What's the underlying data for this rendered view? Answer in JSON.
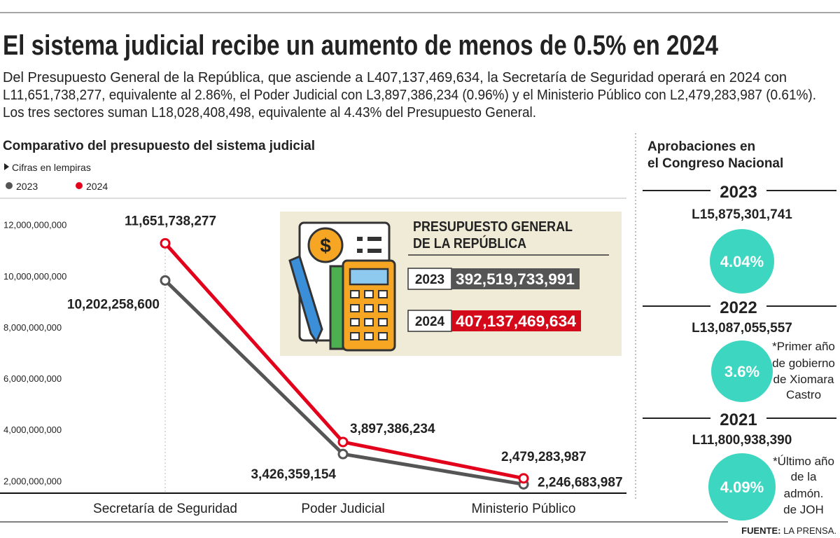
{
  "title": "El sistema judicial recibe un aumento de menos de 0.5% en 2024",
  "intro": [
    "Del Presupuesto General de la República, que asciende a L407,137,469,634, la Secretaría de Seguridad operará en 2024 con",
    "L11,651,738,277, equivalente al 2.86%, el Poder Judicial con L3,897,386,234 (0.96%) y el Ministerio Público con L2,479,283,987 (0.61%).",
    "Los tres sectores suman L18,028,408,498, equivalente al 4.43% del Presupuesto General."
  ],
  "chart_data": {
    "type": "line",
    "title": "Comparativo del presupuesto del sistema judicial",
    "subtitle": "Cifras en lempiras",
    "categories": [
      "Secretaría de Seguridad",
      "Poder Judicial",
      "Ministerio Público"
    ],
    "series": [
      {
        "name": "2023",
        "color": "#555555",
        "values": [
          10202258600,
          3426359154,
          2246683987
        ],
        "value_labels": [
          "10,202,258,600",
          "3,426,359,154",
          "2,246,683,987"
        ]
      },
      {
        "name": "2024",
        "color": "#e3001b",
        "values": [
          11651738277,
          3897386234,
          2479283987
        ],
        "value_labels": [
          "11,651,738,277",
          "3,897,386,234",
          "2,479,283,987"
        ]
      }
    ],
    "ylim": [
      1900000000,
      12700000000
    ],
    "yticks": [
      {
        "value": 2000000000,
        "label": "2,000,000,000"
      },
      {
        "value": 4000000000,
        "label": "4,000,000,000"
      },
      {
        "value": 6000000000,
        "label": "6,000,000,000"
      },
      {
        "value": 8000000000,
        "label": "8,000,000,000"
      },
      {
        "value": 10000000000,
        "label": "10,000,000,000"
      },
      {
        "value": 12000000000,
        "label": "12,000,000,000"
      }
    ],
    "grid": false,
    "legend": "top-left"
  },
  "inset": {
    "title": [
      "PRESUPUESTO GENERAL",
      "DE LA REPÚBLICA"
    ],
    "rows": [
      {
        "year": "2023",
        "amount": "392,519,733,991"
      },
      {
        "year": "2024",
        "amount": "407,137,469,634"
      }
    ]
  },
  "sidebar": {
    "title": [
      "Aprobaciones en",
      "el Congreso Nacional"
    ],
    "items": [
      {
        "year": "2023",
        "amount": "L15,875,301,741",
        "percent": "4.04%",
        "note": []
      },
      {
        "year": "2022",
        "amount": "L13,087,055,557",
        "percent": "3.6%",
        "note": [
          "*Primer año",
          "de gobierno",
          "de Xiomara",
          "Castro"
        ]
      },
      {
        "year": "2021",
        "amount": "L11,800,938,390",
        "percent": "4.09%",
        "note": [
          "*Último año",
          "de la",
          "admón.",
          "de JOH"
        ]
      }
    ]
  },
  "footer": {
    "label": "FUENTE:",
    "source": " LA PRENSA."
  }
}
